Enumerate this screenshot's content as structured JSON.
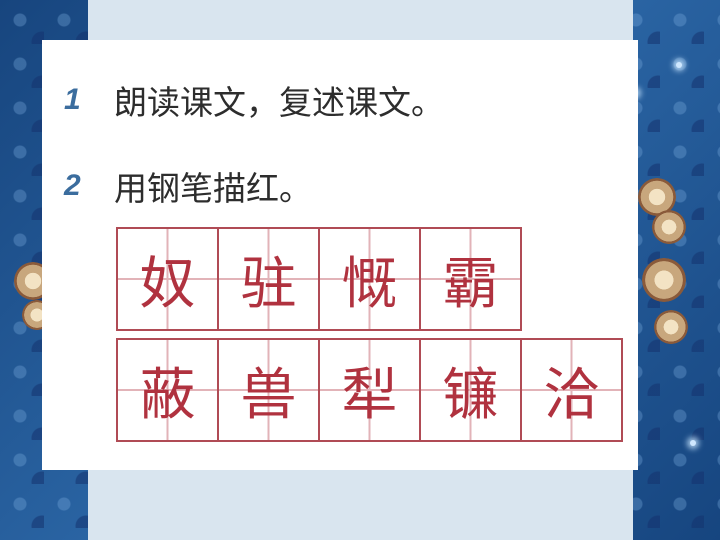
{
  "instructions": [
    {
      "number": "1",
      "text": "朗读课文，复述课文。"
    },
    {
      "number": "2",
      "text": "用钢笔描红。"
    }
  ],
  "row1": [
    "奴",
    "驻",
    "慨",
    "霸"
  ],
  "row2": [
    "蔽",
    "兽",
    "犁",
    "镰",
    "洽"
  ],
  "colors": {
    "background": "#1d4f8a",
    "grid_line": "#b04b55",
    "character": "#b0323f",
    "number": "#3b6d9e"
  },
  "icons": [
    "flower-decoration-icon",
    "sparkle-icon"
  ]
}
